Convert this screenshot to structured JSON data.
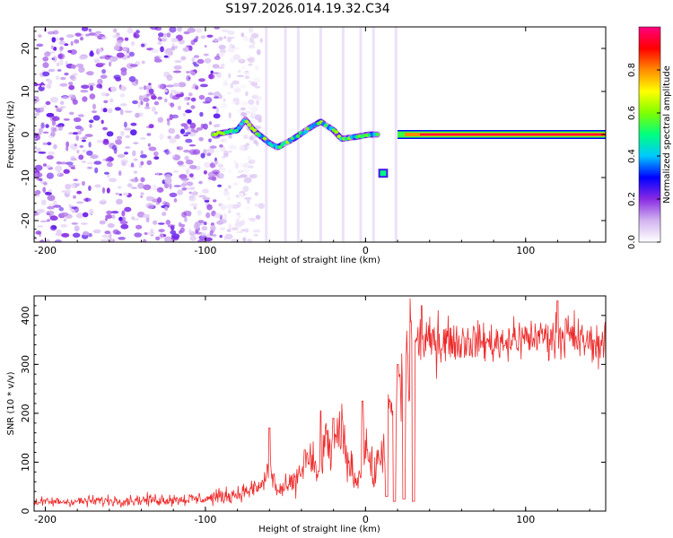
{
  "title": "S197.2026.014.19.32.C34",
  "chart_data": [
    {
      "type": "heatmap",
      "xlabel": "Height of straight line (km)",
      "ylabel": "Frequency (Hz)",
      "xlim": [
        -207,
        150
      ],
      "ylim": [
        -25,
        25
      ],
      "x_ticks": [
        -200,
        -100,
        0,
        100
      ],
      "y_ticks": [
        -20,
        -10,
        0,
        10,
        20
      ],
      "colorbar": {
        "label": "Normalized spectral amplitude",
        "range": [
          0,
          1
        ],
        "ticks": [
          "0.0",
          "0.2",
          "0.4",
          "0.6",
          "0.8"
        ],
        "colors": [
          "#ffffff",
          "#d2b4f0",
          "#8a2be2",
          "#0000ff",
          "#00c8ff",
          "#00ff7f",
          "#7fff00",
          "#ffff00",
          "#ff8c00",
          "#ff0000",
          "#ff0080"
        ]
      },
      "features": [
        {
          "name": "broadband noise",
          "x_range": [
            -207,
            -90
          ],
          "freq_range": [
            -25,
            25
          ],
          "amplitude": 0.15
        },
        {
          "name": "wandering echo",
          "points": [
            [
              -95,
              0
            ],
            [
              -80,
              1
            ],
            [
              -75,
              3.5
            ],
            [
              -70,
              1
            ],
            [
              -60,
              -2
            ],
            [
              -55,
              -3
            ],
            [
              -45,
              -1
            ],
            [
              -35,
              1.5
            ],
            [
              -28,
              3
            ],
            [
              -20,
              1
            ],
            [
              -15,
              -1
            ],
            [
              -5,
              -0.5
            ],
            [
              2,
              0
            ],
            [
              8,
              0
            ]
          ],
          "amplitude": 0.45
        },
        {
          "name": "secondary echo",
          "x_range": [
            8,
            14
          ],
          "freq": -9,
          "amplitude": 0.5
        },
        {
          "name": "stable carrier",
          "x_range": [
            20,
            150
          ],
          "freq": 0,
          "amplitude": 0.95
        }
      ]
    },
    {
      "type": "line",
      "xlabel": "Height of straight line (km)",
      "ylabel": "SNR (10 * v/v)",
      "xlim": [
        -207,
        150
      ],
      "ylim": [
        0,
        440
      ],
      "x_ticks": [
        -200,
        -100,
        0,
        100
      ],
      "y_ticks": [
        0,
        100,
        200,
        300,
        400
      ],
      "color": "#ee2a2a",
      "profile": [
        [
          -207,
          18
        ],
        [
          -150,
          22
        ],
        [
          -100,
          25
        ],
        [
          -80,
          35
        ],
        [
          -65,
          50
        ],
        [
          -60,
          90
        ],
        [
          -55,
          40
        ],
        [
          -45,
          55
        ],
        [
          -35,
          110
        ],
        [
          -30,
          70
        ],
        [
          -25,
          140
        ],
        [
          -20,
          120
        ],
        [
          -15,
          160
        ],
        [
          -10,
          90
        ],
        [
          -5,
          60
        ],
        [
          0,
          140
        ],
        [
          5,
          70
        ],
        [
          10,
          120
        ],
        [
          15,
          190
        ],
        [
          20,
          230
        ],
        [
          25,
          300
        ],
        [
          30,
          340
        ],
        [
          40,
          350
        ],
        [
          60,
          350
        ],
        [
          80,
          345
        ],
        [
          100,
          355
        ],
        [
          120,
          360
        ],
        [
          140,
          345
        ],
        [
          150,
          340
        ]
      ],
      "spikes": [
        [
          -60,
          170
        ],
        [
          -38,
          125
        ],
        [
          -28,
          205
        ],
        [
          -20,
          190
        ],
        [
          -2,
          225
        ],
        [
          20,
          300
        ],
        [
          35,
          420
        ],
        [
          120,
          430
        ]
      ],
      "dropouts": [
        [
          13,
          30
        ],
        [
          18,
          20
        ],
        [
          24,
          25
        ],
        [
          30,
          20
        ]
      ]
    }
  ]
}
